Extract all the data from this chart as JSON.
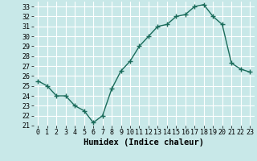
{
  "x": [
    0,
    1,
    2,
    3,
    4,
    5,
    6,
    7,
    8,
    9,
    10,
    11,
    12,
    13,
    14,
    15,
    16,
    17,
    18,
    19,
    20,
    21,
    22,
    23
  ],
  "y": [
    25.5,
    25.0,
    24.0,
    24.0,
    23.0,
    22.5,
    21.3,
    22.0,
    24.7,
    26.5,
    27.5,
    29.0,
    30.0,
    31.0,
    31.2,
    32.0,
    32.2,
    33.0,
    33.2,
    32.0,
    31.2,
    27.3,
    26.7,
    26.4
  ],
  "line_color": "#1a6b5a",
  "marker": "+",
  "markersize": 4,
  "markeredgewidth": 1.0,
  "linewidth": 1.0,
  "xlabel": "Humidex (Indice chaleur)",
  "xlim": [
    -0.5,
    23.5
  ],
  "ylim": [
    21,
    33.5
  ],
  "yticks": [
    21,
    22,
    23,
    24,
    25,
    26,
    27,
    28,
    29,
    30,
    31,
    32,
    33
  ],
  "xticks": [
    0,
    1,
    2,
    3,
    4,
    5,
    6,
    7,
    8,
    9,
    10,
    11,
    12,
    13,
    14,
    15,
    16,
    17,
    18,
    19,
    20,
    21,
    22,
    23
  ],
  "bg_color": "#c8e8e8",
  "grid_color": "#ffffff",
  "tick_label_fontsize": 6.0,
  "xlabel_fontsize": 7.5
}
